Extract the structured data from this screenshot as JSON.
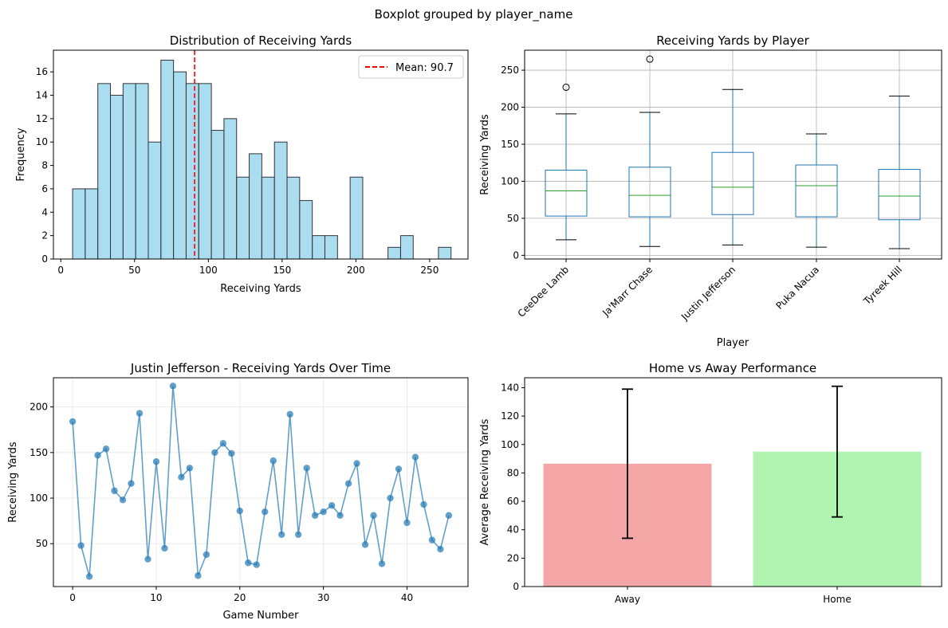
{
  "figure_title": "Boxplot grouped by player_name",
  "colors": {
    "hist_fill": "#87CEEB",
    "edge": "#333333",
    "mean_line": "#FF0000",
    "box": "#1f77b4",
    "median": "#2ca02c",
    "line": "#1f77b4",
    "away": "#F08080",
    "home": "#90EE90",
    "grid": "#b0b0b0"
  },
  "chart_data": [
    {
      "type": "bar",
      "subtype": "histogram",
      "title": "Distribution of Receiving Yards",
      "xlabel": "Receiving Yards",
      "ylabel": "Frequency",
      "xlim": [
        -5,
        276
      ],
      "ylim": [
        0,
        17.85
      ],
      "xticks": [
        0,
        50,
        100,
        150,
        200,
        250
      ],
      "yticks": [
        0,
        2,
        4,
        6,
        8,
        10,
        12,
        14,
        16
      ],
      "bin_start": 8,
      "bin_width": 8.55,
      "counts": [
        6,
        6,
        15,
        14,
        15,
        15,
        10,
        17,
        16,
        15,
        15,
        11,
        12,
        7,
        9,
        7,
        10,
        7,
        5,
        2,
        2,
        0,
        7,
        0,
        0,
        1,
        2,
        0,
        0,
        1
      ],
      "mean": 90.7,
      "legend": "Mean: 90.7",
      "legend_position": "top-right",
      "grid": false
    },
    {
      "type": "boxplot",
      "title": "Receiving Yards by Player",
      "xlabel": "Player",
      "ylabel": "Receiving Yards",
      "ylim": [
        -5,
        277
      ],
      "yticks": [
        0,
        50,
        100,
        150,
        200,
        250
      ],
      "grid": true,
      "boxes": [
        {
          "label": "CeeDee Lamb",
          "whislo": 21,
          "q1": 53,
          "med": 87,
          "q3": 115,
          "whishi": 191,
          "fliers": [
            227
          ]
        },
        {
          "label": "Ja'Marr Chase",
          "whislo": 12,
          "q1": 52,
          "med": 81,
          "q3": 119,
          "whishi": 193,
          "fliers": [
            265
          ]
        },
        {
          "label": "Justin Jefferson",
          "whislo": 14,
          "q1": 55,
          "med": 92,
          "q3": 139,
          "whishi": 224,
          "fliers": []
        },
        {
          "label": "Puka Nacua",
          "whislo": 11,
          "q1": 52,
          "med": 94,
          "q3": 122,
          "whishi": 164,
          "fliers": []
        },
        {
          "label": "Tyreek Hill",
          "whislo": 9,
          "q1": 48,
          "med": 80,
          "q3": 116,
          "whishi": 215,
          "fliers": []
        }
      ]
    },
    {
      "type": "line",
      "title": "Justin Jefferson - Receiving Yards Over Time",
      "xlabel": "Game Number",
      "ylabel": "Receiving Yards",
      "xlim": [
        -2.3,
        47.3
      ],
      "ylim": [
        3,
        232
      ],
      "xticks": [
        0,
        10,
        20,
        30,
        40
      ],
      "yticks": [
        50,
        100,
        150,
        200
      ],
      "grid": true,
      "x": [
        0,
        1,
        2,
        3,
        4,
        5,
        6,
        7,
        8,
        9,
        10,
        11,
        12,
        13,
        14,
        15,
        16,
        17,
        18,
        19,
        20,
        21,
        22,
        23,
        24,
        25,
        26,
        27,
        28,
        29,
        30,
        31,
        32,
        33,
        34,
        35,
        36,
        37,
        38,
        39,
        40,
        41,
        42,
        43,
        44,
        45
      ],
      "y": [
        184,
        48,
        14,
        147,
        154,
        108,
        98,
        116,
        193,
        33,
        140,
        45,
        223,
        123,
        133,
        15,
        38,
        150,
        160,
        149,
        86,
        29,
        27,
        85,
        141,
        60,
        192,
        60,
        133,
        81,
        85,
        92,
        81,
        116,
        138,
        49,
        81,
        28,
        100,
        132,
        73,
        145,
        93,
        54,
        44,
        81
      ]
    },
    {
      "type": "bar",
      "title": "Home vs Away Performance",
      "xlabel": "",
      "ylabel": "Average Receiving Yards",
      "ylim": [
        0,
        147
      ],
      "yticks": [
        0,
        20,
        40,
        60,
        80,
        100,
        120,
        140
      ],
      "categories": [
        "Away",
        "Home"
      ],
      "values": [
        86.5,
        95
      ],
      "error": [
        52.5,
        46
      ],
      "grid": false
    }
  ]
}
